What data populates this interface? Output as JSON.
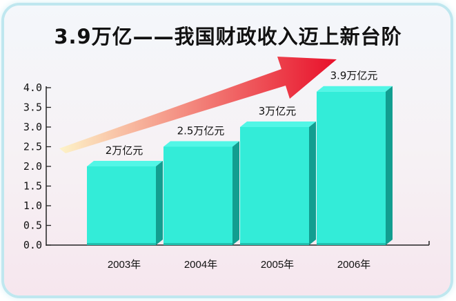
{
  "title": "3.9万亿——我国财政收入迈上新台阶",
  "colors": {
    "bar_front": "#33ecd8",
    "bar_top": "#52f6e6",
    "bar_side": "#129e90",
    "arrow_start": "#fdf3c8",
    "arrow_end": "#e8102a"
  },
  "chart_data": {
    "type": "bar",
    "title": "3.9万亿——我国财政收入迈上新台阶",
    "categories": [
      "2003年",
      "2004年",
      "2005年",
      "2006年"
    ],
    "values": [
      2.0,
      2.5,
      3.0,
      3.9
    ],
    "data_labels": [
      "2万亿元",
      "2.5万亿元",
      "3万亿元",
      "3.9万亿元"
    ],
    "y_ticks": [
      "0.0",
      "0.5",
      "1.0",
      "1.5",
      "2.0",
      "2.5",
      "3.0",
      "3.5",
      "4.0"
    ],
    "ylim": [
      0,
      4.0
    ],
    "xlabel": "",
    "ylabel": "",
    "grid": false,
    "style": "3d"
  }
}
